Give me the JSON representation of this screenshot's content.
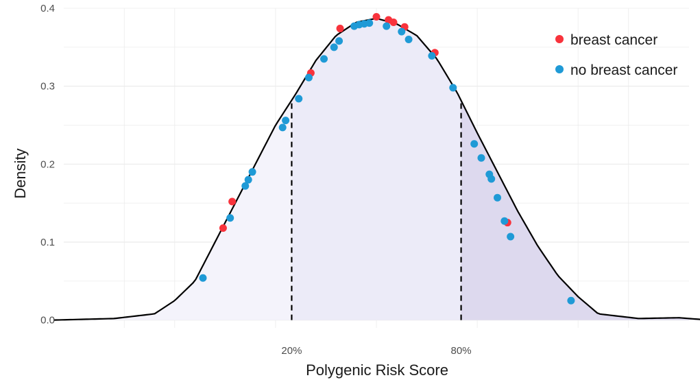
{
  "chart_data": {
    "type": "line",
    "title": "",
    "xlabel": "Polygenic Risk Score",
    "ylabel": "Density",
    "xlim": [
      -3.1,
      3.1
    ],
    "ylim": [
      -0.01,
      0.4
    ],
    "grid": true,
    "x_scale": "percentile markers",
    "y_ticks": [
      {
        "value": 0.0,
        "label": "0.0"
      },
      {
        "value": 0.1,
        "label": "0.1"
      },
      {
        "value": 0.2,
        "label": "0.2"
      },
      {
        "value": 0.3,
        "label": "0.3"
      },
      {
        "value": 0.4,
        "label": "0.4"
      }
    ],
    "x_ticks": [
      {
        "value": -0.84,
        "label": "20%"
      },
      {
        "value": 0.84,
        "label": "80%"
      }
    ],
    "density_curve": {
      "color": "#000000",
      "x": [
        -3.2,
        -2.6,
        -2.2,
        -2.0,
        -1.8,
        -1.6,
        -1.4,
        -1.2,
        -1.0,
        -0.8,
        -0.6,
        -0.4,
        -0.2,
        0.0,
        0.2,
        0.4,
        0.6,
        0.8,
        1.0,
        1.2,
        1.4,
        1.6,
        1.8,
        2.0,
        2.2,
        2.6,
        3.0,
        3.3
      ],
      "y": [
        0.0,
        0.002,
        0.008,
        0.025,
        0.05,
        0.1,
        0.15,
        0.2,
        0.25,
        0.29,
        0.333,
        0.365,
        0.382,
        0.387,
        0.38,
        0.365,
        0.335,
        0.292,
        0.24,
        0.19,
        0.14,
        0.095,
        0.057,
        0.03,
        0.008,
        0.002,
        0.003,
        0.0
      ]
    },
    "shaded_regions": [
      {
        "from": -3.2,
        "to": -0.84,
        "color": "#f4f3fb"
      },
      {
        "from": -0.84,
        "to": 0.84,
        "color": "#ecebf8"
      },
      {
        "from": 0.84,
        "to": 3.3,
        "color": "#ddd9ee"
      }
    ],
    "vlines": [
      {
        "x": -0.84,
        "style": "dashed",
        "color": "#000000"
      },
      {
        "x": 0.84,
        "style": "dashed",
        "color": "#000000"
      }
    ],
    "legend_position": "top-right",
    "series": [
      {
        "name": "breast cancer",
        "color": "#f8333c",
        "points": [
          [
            -1.52,
            0.118
          ],
          [
            -1.43,
            0.152
          ],
          [
            -0.65,
            0.317
          ],
          [
            -0.36,
            0.374
          ],
          [
            0.0,
            0.389
          ],
          [
            0.12,
            0.385
          ],
          [
            0.17,
            0.382
          ],
          [
            0.28,
            0.376
          ],
          [
            0.58,
            0.343
          ],
          [
            1.3,
            0.125
          ]
        ]
      },
      {
        "name": "no breast cancer",
        "color": "#1f9ad6",
        "points": [
          [
            -1.72,
            0.054
          ],
          [
            -1.45,
            0.131
          ],
          [
            -1.3,
            0.172
          ],
          [
            -1.27,
            0.18
          ],
          [
            -1.23,
            0.19
          ],
          [
            -0.93,
            0.247
          ],
          [
            -0.9,
            0.256
          ],
          [
            -0.77,
            0.284
          ],
          [
            -0.67,
            0.311
          ],
          [
            -0.52,
            0.335
          ],
          [
            -0.42,
            0.35
          ],
          [
            -0.37,
            0.358
          ],
          [
            -0.22,
            0.377
          ],
          [
            -0.17,
            0.379
          ],
          [
            -0.12,
            0.38
          ],
          [
            -0.07,
            0.381
          ],
          [
            0.1,
            0.377
          ],
          [
            0.25,
            0.37
          ],
          [
            0.32,
            0.36
          ],
          [
            0.55,
            0.339
          ],
          [
            0.76,
            0.298
          ],
          [
            0.97,
            0.226
          ],
          [
            1.04,
            0.208
          ],
          [
            1.12,
            0.187
          ],
          [
            1.14,
            0.181
          ],
          [
            1.2,
            0.157
          ],
          [
            1.27,
            0.127
          ],
          [
            1.33,
            0.107
          ],
          [
            1.93,
            0.025
          ]
        ]
      }
    ]
  }
}
